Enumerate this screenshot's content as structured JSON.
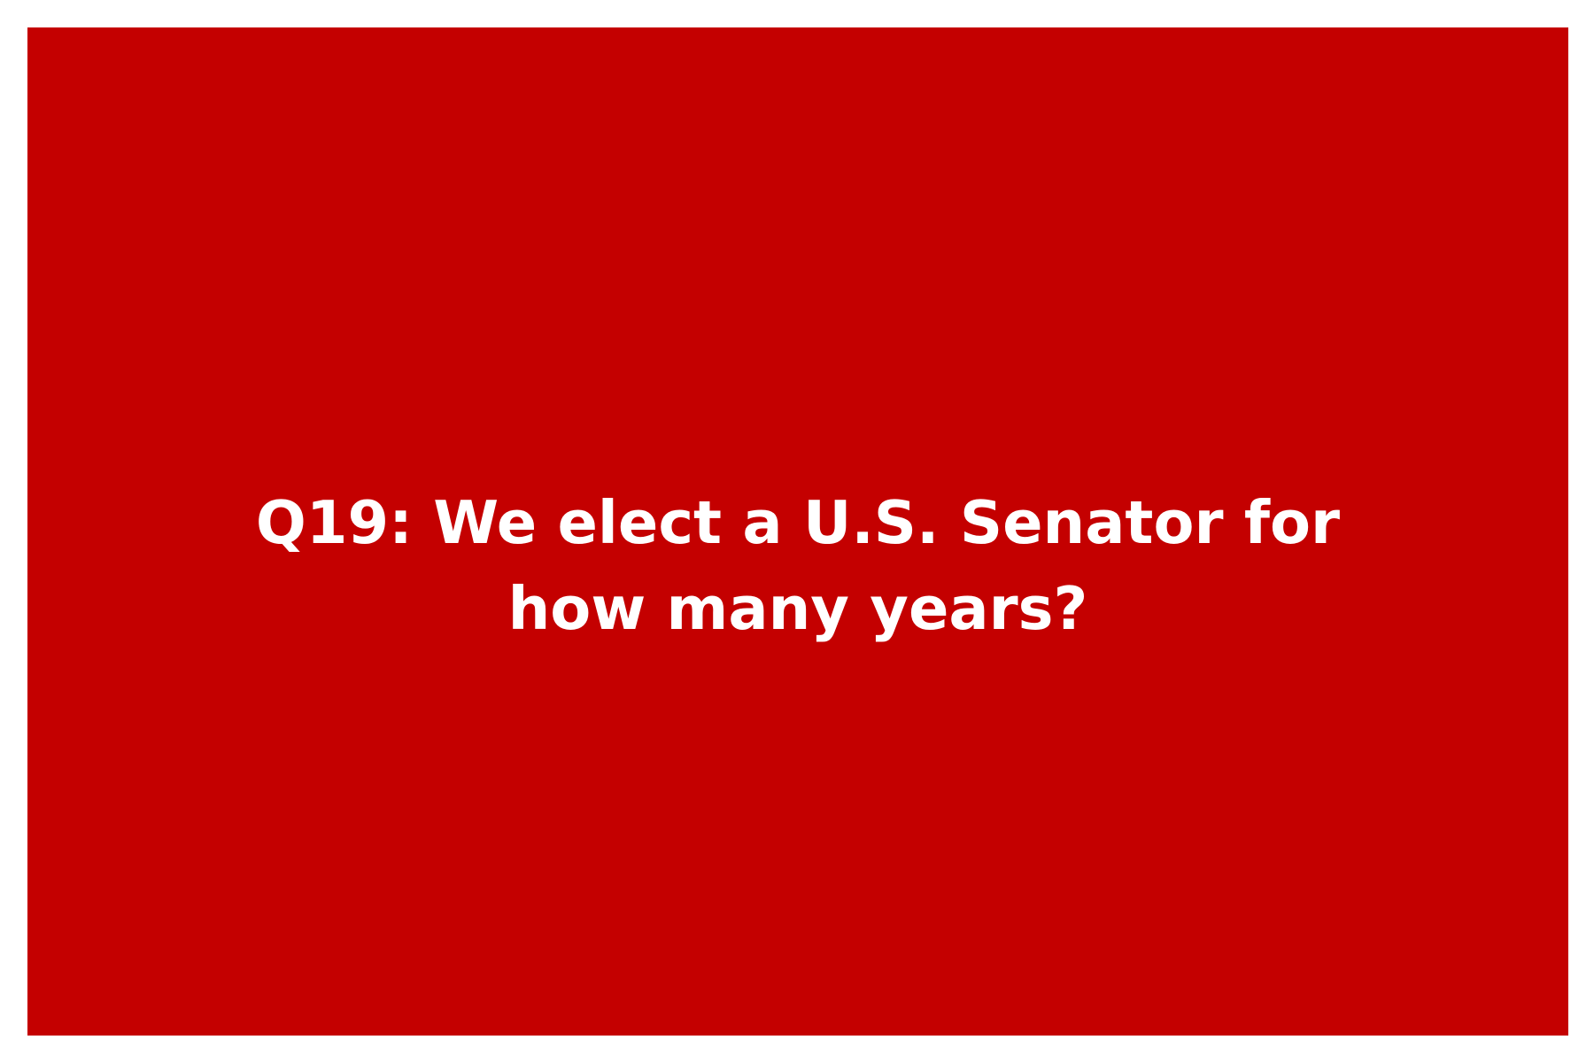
{
  "slide": {
    "background_color": "#c40000",
    "text_color": "#ffffff",
    "question_lines": [
      "Q19: We elect a U.S. Senator for",
      "how many years?"
    ]
  }
}
